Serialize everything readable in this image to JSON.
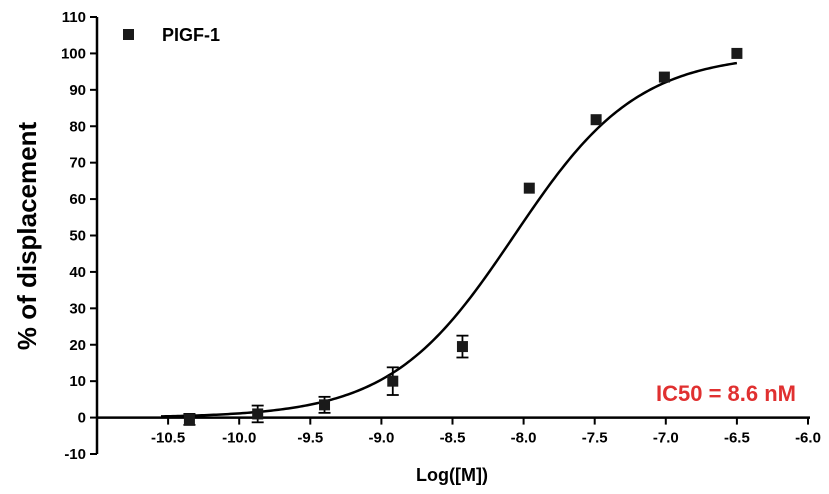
{
  "chart_data": {
    "type": "scatter",
    "title": "",
    "xlabel": "Log([M])",
    "ylabel": "% of displacement",
    "xlim": [
      -11.0,
      -6.0
    ],
    "ylim": [
      -10,
      110
    ],
    "x_ticks": [
      -10.5,
      -10.0,
      -9.5,
      -9.0,
      -8.5,
      -8.0,
      -7.5,
      -7.0,
      -6.5,
      -6.0
    ],
    "x_tick_labels": [
      "-10.5",
      "-10.0",
      "-9.5",
      "-9.0",
      "-8.5",
      "-8.0",
      "-7.5",
      "-7.0",
      "-6.5",
      "-6.0"
    ],
    "y_ticks": [
      -10,
      0,
      10,
      20,
      30,
      40,
      50,
      60,
      70,
      80,
      90,
      100,
      110
    ],
    "y_tick_labels": [
      "-10",
      "0",
      "10",
      "20",
      "30",
      "40",
      "50",
      "60",
      "70",
      "80",
      "90",
      "100",
      "110"
    ],
    "grid": false,
    "legend": {
      "position": "top-left",
      "entries": [
        "PIGF-1"
      ]
    },
    "series": [
      {
        "name": "PIGF-1",
        "marker": "square",
        "color": "#1a1a1a",
        "points": [
          {
            "x": -10.35,
            "y": -0.5,
            "err": 1.5
          },
          {
            "x": -9.87,
            "y": 1.0,
            "err": 2.3
          },
          {
            "x": -9.4,
            "y": 3.5,
            "err": 2.2
          },
          {
            "x": -8.92,
            "y": 10.0,
            "err": 3.8
          },
          {
            "x": -8.43,
            "y": 19.5,
            "err": 3.0
          },
          {
            "x": -7.96,
            "y": 63.0,
            "err": 0.5
          },
          {
            "x": -7.49,
            "y": 81.8,
            "err": 0.5
          },
          {
            "x": -7.01,
            "y": 93.5,
            "err": 0.5
          },
          {
            "x": -6.5,
            "y": 100.0,
            "err": 0.3
          }
        ]
      }
    ],
    "fit": {
      "type": "sigmoidal dose-response",
      "bottom": 0,
      "top": 100,
      "logIC50": -8.066,
      "hill": 1.0,
      "color": "#000000"
    },
    "annotation": {
      "text": "IC50 = 8.6 nM",
      "color": "#e03030"
    }
  }
}
